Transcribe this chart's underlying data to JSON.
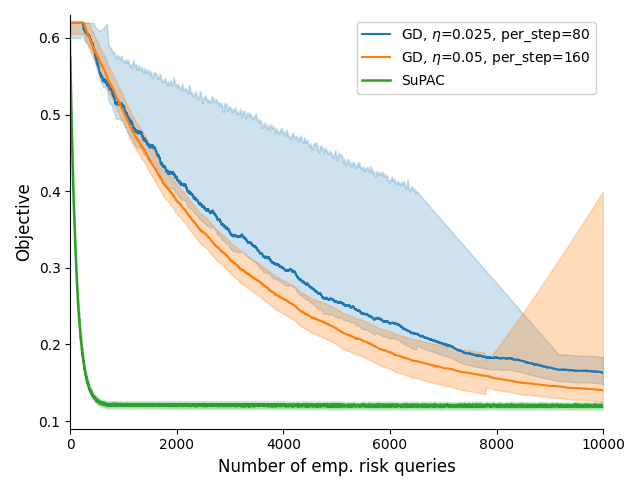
{
  "xlabel": "Number of emp. risk queries",
  "ylabel": "Objective",
  "xlim": [
    0,
    10000
  ],
  "ylim": [
    0.09,
    0.63
  ],
  "yticks": [
    0.1,
    0.2,
    0.3,
    0.4,
    0.5,
    0.6
  ],
  "xticks": [
    0,
    2000,
    4000,
    6000,
    8000,
    10000
  ],
  "legend": [
    {
      "label": "GD, $\\eta$=0.025, per_step=80",
      "color": "#1f77b4"
    },
    {
      "label": "GD, $\\eta$=0.05, per_step=160",
      "color": "#ff7f0e"
    },
    {
      "label": "SuPAC",
      "color": "#2ca02c"
    }
  ],
  "blue_alpha": 0.22,
  "orange_alpha": 0.28,
  "green_alpha": 0.22,
  "n_points": 10000
}
